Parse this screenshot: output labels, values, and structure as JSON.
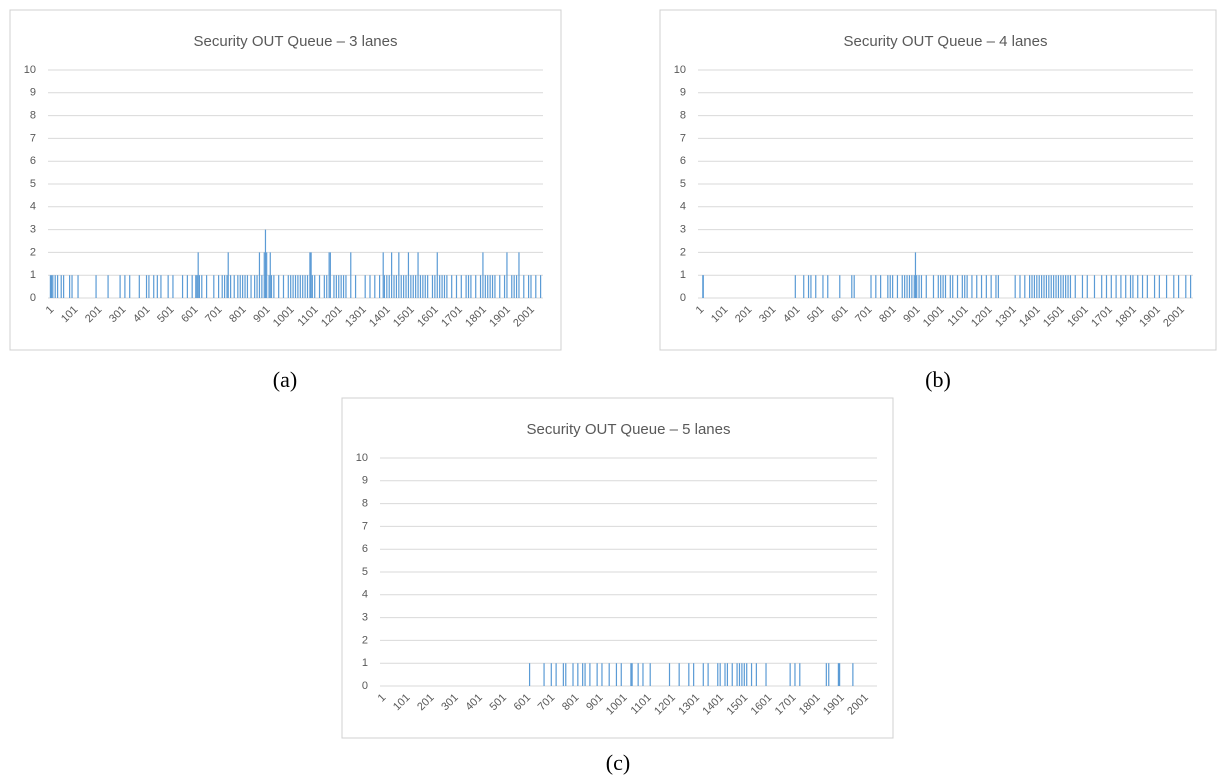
{
  "chart_data": [
    {
      "type": "bar",
      "title": "Security OUT Queue – 3 lanes",
      "caption": "(a)",
      "color": "#5b9bd5",
      "xlim": [
        0,
        2060
      ],
      "ylim": [
        0,
        10
      ],
      "xticks": [
        1,
        101,
        201,
        301,
        401,
        501,
        601,
        701,
        801,
        901,
        1001,
        1101,
        1201,
        1301,
        1401,
        1501,
        1601,
        1701,
        1801,
        1901,
        2001
      ],
      "yticks": [
        0,
        1,
        2,
        3,
        4,
        5,
        6,
        7,
        8,
        9,
        10
      ],
      "grid": true,
      "x": [
        10,
        15,
        20,
        30,
        40,
        55,
        65,
        90,
        100,
        125,
        200,
        250,
        300,
        320,
        340,
        380,
        410,
        420,
        440,
        455,
        470,
        500,
        520,
        560,
        580,
        600,
        615,
        620,
        625,
        630,
        640,
        660,
        690,
        710,
        725,
        735,
        745,
        750,
        760,
        775,
        790,
        800,
        810,
        820,
        830,
        845,
        860,
        870,
        880,
        890,
        900,
        905,
        910,
        920,
        925,
        930,
        940,
        960,
        980,
        1000,
        1010,
        1020,
        1030,
        1040,
        1050,
        1060,
        1070,
        1080,
        1090,
        1095,
        1100,
        1110,
        1130,
        1150,
        1160,
        1170,
        1175,
        1190,
        1200,
        1210,
        1220,
        1230,
        1240,
        1260,
        1280,
        1320,
        1340,
        1360,
        1380,
        1395,
        1400,
        1410,
        1420,
        1430,
        1440,
        1450,
        1460,
        1470,
        1480,
        1490,
        1500,
        1510,
        1520,
        1530,
        1540,
        1550,
        1560,
        1570,
        1580,
        1600,
        1610,
        1620,
        1630,
        1640,
        1650,
        1660,
        1680,
        1700,
        1720,
        1740,
        1750,
        1760,
        1780,
        1800,
        1810,
        1820,
        1830,
        1840,
        1850,
        1860,
        1880,
        1900,
        1910,
        1930,
        1940,
        1950,
        1960,
        1980,
        2000,
        2010,
        2030,
        2050
      ],
      "values": [
        1,
        1,
        1,
        1,
        1,
        1,
        1,
        1,
        1,
        1,
        1,
        1,
        1,
        1,
        1,
        1,
        1,
        1,
        1,
        1,
        1,
        1,
        1,
        1,
        1,
        1,
        1,
        1,
        2,
        1,
        1,
        1,
        1,
        1,
        1,
        1,
        1,
        2,
        1,
        1,
        1,
        1,
        1,
        1,
        1,
        1,
        1,
        1,
        2,
        1,
        2,
        3,
        2,
        1,
        2,
        1,
        1,
        1,
        1,
        1,
        1,
        1,
        1,
        1,
        1,
        1,
        1,
        1,
        2,
        2,
        1,
        1,
        1,
        1,
        1,
        2,
        2,
        1,
        1,
        1,
        1,
        1,
        1,
        2,
        1,
        1,
        1,
        1,
        1,
        2,
        1,
        1,
        1,
        2,
        1,
        1,
        2,
        1,
        1,
        1,
        2,
        1,
        1,
        1,
        2,
        1,
        1,
        1,
        1,
        1,
        1,
        2,
        1,
        1,
        1,
        1,
        1,
        1,
        1,
        1,
        1,
        1,
        1,
        1,
        2,
        1,
        1,
        1,
        1,
        1,
        1,
        1,
        2,
        1,
        1,
        1,
        2,
        1,
        1,
        1,
        1,
        1
      ]
    },
    {
      "type": "bar",
      "title": "Security OUT Queue – 4 lanes",
      "caption": "(b)",
      "color": "#5b9bd5",
      "xlim": [
        0,
        2060
      ],
      "ylim": [
        0,
        10
      ],
      "xticks": [
        1,
        101,
        201,
        301,
        401,
        501,
        601,
        701,
        801,
        901,
        1001,
        1101,
        1201,
        1301,
        1401,
        1501,
        1601,
        1701,
        1801,
        1901,
        2001
      ],
      "yticks": [
        0,
        1,
        2,
        3,
        4,
        5,
        6,
        7,
        8,
        9,
        10
      ],
      "grid": true,
      "x": [
        20,
        22,
        405,
        440,
        460,
        470,
        490,
        520,
        540,
        590,
        640,
        650,
        720,
        740,
        760,
        790,
        800,
        810,
        830,
        850,
        860,
        870,
        880,
        890,
        900,
        905,
        910,
        920,
        930,
        950,
        980,
        1000,
        1010,
        1020,
        1030,
        1050,
        1060,
        1080,
        1100,
        1110,
        1120,
        1140,
        1160,
        1180,
        1200,
        1220,
        1240,
        1250,
        1320,
        1340,
        1360,
        1380,
        1390,
        1400,
        1410,
        1420,
        1430,
        1440,
        1450,
        1460,
        1470,
        1480,
        1490,
        1500,
        1510,
        1520,
        1530,
        1540,
        1550,
        1570,
        1600,
        1620,
        1650,
        1680,
        1700,
        1720,
        1740,
        1760,
        1780,
        1800,
        1810,
        1830,
        1850,
        1870,
        1900,
        1920,
        1950,
        1980,
        2000,
        2030,
        2050
      ],
      "values": [
        1,
        1,
        1,
        1,
        1,
        1,
        1,
        1,
        1,
        1,
        1,
        1,
        1,
        1,
        1,
        1,
        1,
        1,
        1,
        1,
        1,
        1,
        1,
        1,
        1,
        2,
        1,
        1,
        1,
        1,
        1,
        1,
        1,
        1,
        1,
        1,
        1,
        1,
        1,
        1,
        1,
        1,
        1,
        1,
        1,
        1,
        1,
        1,
        1,
        1,
        1,
        1,
        1,
        1,
        1,
        1,
        1,
        1,
        1,
        1,
        1,
        1,
        1,
        1,
        1,
        1,
        1,
        1,
        1,
        1,
        1,
        1,
        1,
        1,
        1,
        1,
        1,
        1,
        1,
        1,
        1,
        1,
        1,
        1,
        1,
        1,
        1,
        1,
        1,
        1,
        1
      ]
    },
    {
      "type": "bar",
      "title": "Security OUT Queue – 5 lanes",
      "caption": "(c)",
      "color": "#5b9bd5",
      "xlim": [
        0,
        2060
      ],
      "ylim": [
        0,
        10
      ],
      "xticks": [
        1,
        101,
        201,
        301,
        401,
        501,
        601,
        701,
        801,
        901,
        1001,
        1101,
        1201,
        1301,
        1401,
        1501,
        1601,
        1701,
        1801,
        1901,
        2001
      ],
      "yticks": [
        0,
        1,
        2,
        3,
        4,
        5,
        6,
        7,
        8,
        9,
        10
      ],
      "grid": true,
      "x": [
        620,
        680,
        710,
        730,
        760,
        770,
        800,
        820,
        840,
        850,
        870,
        900,
        920,
        950,
        980,
        1000,
        1040,
        1045,
        1070,
        1090,
        1120,
        1200,
        1240,
        1280,
        1300,
        1340,
        1360,
        1400,
        1410,
        1430,
        1440,
        1460,
        1480,
        1490,
        1500,
        1510,
        1520,
        1540,
        1560,
        1600,
        1700,
        1720,
        1740,
        1850,
        1860,
        1900,
        1905,
        1960
      ],
      "values": [
        1,
        1,
        1,
        1,
        1,
        1,
        1,
        1,
        1,
        1,
        1,
        1,
        1,
        1,
        1,
        1,
        1,
        1,
        1,
        1,
        1,
        1,
        1,
        1,
        1,
        1,
        1,
        1,
        1,
        1,
        1,
        1,
        1,
        1,
        1,
        1,
        1,
        1,
        1,
        1,
        1,
        1,
        1,
        1,
        1,
        1,
        1,
        1
      ]
    }
  ]
}
